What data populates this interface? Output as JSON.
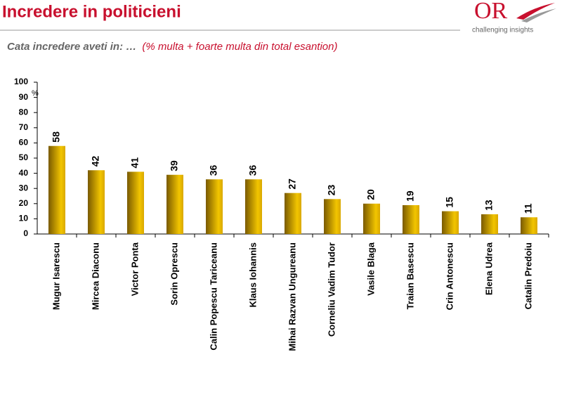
{
  "header": {
    "title": "Incredere in politicieni",
    "subtitle": "Cata incredere aveti in: …",
    "subtitle_note": "(% multa + foarte multa din  total esantion)",
    "logo_text": "OR",
    "logo_tagline": "challenging insights"
  },
  "chart_data": {
    "type": "bar",
    "categories": [
      "Mugur Isarescu",
      "Mircea Diaconu",
      "Victor Ponta",
      "Sorin Oprescu",
      "Calin Popescu Tariceanu",
      "Klaus Iohannis",
      "Mihai Razvan Ungureanu",
      "Corneliu Vadim Tudor",
      "Vasile Blaga",
      "Traian Basescu",
      "Crin Antonescu",
      "Elena Udrea",
      "Catalin Predoiu"
    ],
    "values": [
      58,
      42,
      41,
      39,
      36,
      36,
      27,
      23,
      20,
      19,
      15,
      13,
      11
    ],
    "color": "#f2c500",
    "ylim": [
      0,
      100
    ],
    "yticks": [
      0,
      10,
      20,
      30,
      40,
      50,
      60,
      70,
      80,
      90,
      100
    ],
    "y_unit": "%"
  }
}
